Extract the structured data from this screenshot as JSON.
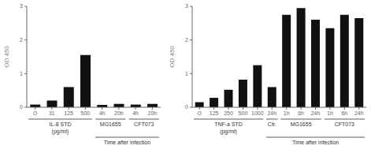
{
  "chart_data": [
    {
      "type": "bar",
      "ylabel": "OD 450",
      "categories": [
        "O",
        "31",
        "125",
        "500",
        "4h",
        "20h",
        "4h",
        "20h"
      ],
      "values": [
        0.08,
        0.2,
        0.6,
        1.55,
        0.07,
        0.1,
        0.08,
        0.1
      ],
      "color": "#111111",
      "ylim": [
        0,
        3
      ],
      "yticks": [
        0,
        1,
        2,
        3
      ],
      "grid": false,
      "annotations": [
        "IL-8 STD",
        "(pg/ml)",
        "MG1655",
        "CFT073",
        "Time after infection"
      ]
    },
    {
      "type": "bar",
      "ylabel": "OD 450",
      "categories": [
        "O",
        "125",
        "250",
        "500",
        "1000",
        "24h",
        "1h",
        "6h",
        "24h",
        "1h",
        "6h",
        "24h"
      ],
      "values": [
        0.15,
        0.28,
        0.52,
        0.82,
        1.25,
        0.6,
        2.75,
        2.95,
        2.6,
        2.35,
        2.75,
        2.65
      ],
      "color": "#111111",
      "ylim": [
        0,
        3
      ],
      "yticks": [
        0,
        1,
        2,
        3
      ],
      "grid": false,
      "annotations": [
        "TNF-a STD",
        "(pg/ml)",
        "Ctr.",
        "MG1655",
        "CFT073",
        "Time after infection"
      ]
    }
  ]
}
